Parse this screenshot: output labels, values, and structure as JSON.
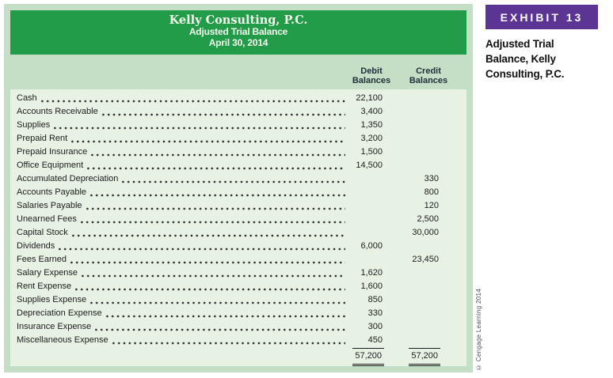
{
  "exhibit": {
    "tag": "EXHIBIT 13",
    "caption": "Adjusted Trial Balance, Kelly Consulting, P.C."
  },
  "statement": {
    "company": "Kelly Consulting, P.C.",
    "title": "Adjusted Trial Balance",
    "date": "April 30, 2014",
    "columns": {
      "debit_line1": "Debit",
      "debit_line2": "Balances",
      "credit_line1": "Credit",
      "credit_line2": "Balances"
    },
    "rows": [
      {
        "account": "Cash",
        "debit": "22,100",
        "credit": ""
      },
      {
        "account": "Accounts Receivable",
        "debit": "3,400",
        "credit": ""
      },
      {
        "account": "Supplies",
        "debit": "1,350",
        "credit": ""
      },
      {
        "account": "Prepaid Rent",
        "debit": "3,200",
        "credit": ""
      },
      {
        "account": "Prepaid Insurance",
        "debit": "1,500",
        "credit": ""
      },
      {
        "account": "Office Equipment",
        "debit": "14,500",
        "credit": ""
      },
      {
        "account": "Accumulated Depreciation",
        "debit": "",
        "credit": "330"
      },
      {
        "account": "Accounts Payable",
        "debit": "",
        "credit": "800"
      },
      {
        "account": "Salaries Payable",
        "debit": "",
        "credit": "120"
      },
      {
        "account": "Unearned Fees",
        "debit": "",
        "credit": "2,500"
      },
      {
        "account": "Capital Stock",
        "debit": "",
        "credit": "30,000"
      },
      {
        "account": "Dividends",
        "debit": "6,000",
        "credit": ""
      },
      {
        "account": "Fees Earned",
        "debit": "",
        "credit": "23,450"
      },
      {
        "account": "Salary Expense",
        "debit": "1,620",
        "credit": ""
      },
      {
        "account": "Rent Expense",
        "debit": "1,600",
        "credit": ""
      },
      {
        "account": "Supplies Expense",
        "debit": "850",
        "credit": ""
      },
      {
        "account": "Depreciation Expense",
        "debit": "330",
        "credit": ""
      },
      {
        "account": "Insurance Expense",
        "debit": "300",
        "credit": ""
      },
      {
        "account": "Miscellaneous Expense",
        "debit": "450",
        "credit": ""
      }
    ],
    "totals": {
      "debit": "57,200",
      "credit": "57,200"
    }
  },
  "copyright": "© Cengage Learning 2014",
  "colors": {
    "header_green": "#229C49",
    "band_green": "#C5DFC6",
    "rows_green": "#E7F1E4",
    "exhibit_purple": "#5C3493"
  }
}
